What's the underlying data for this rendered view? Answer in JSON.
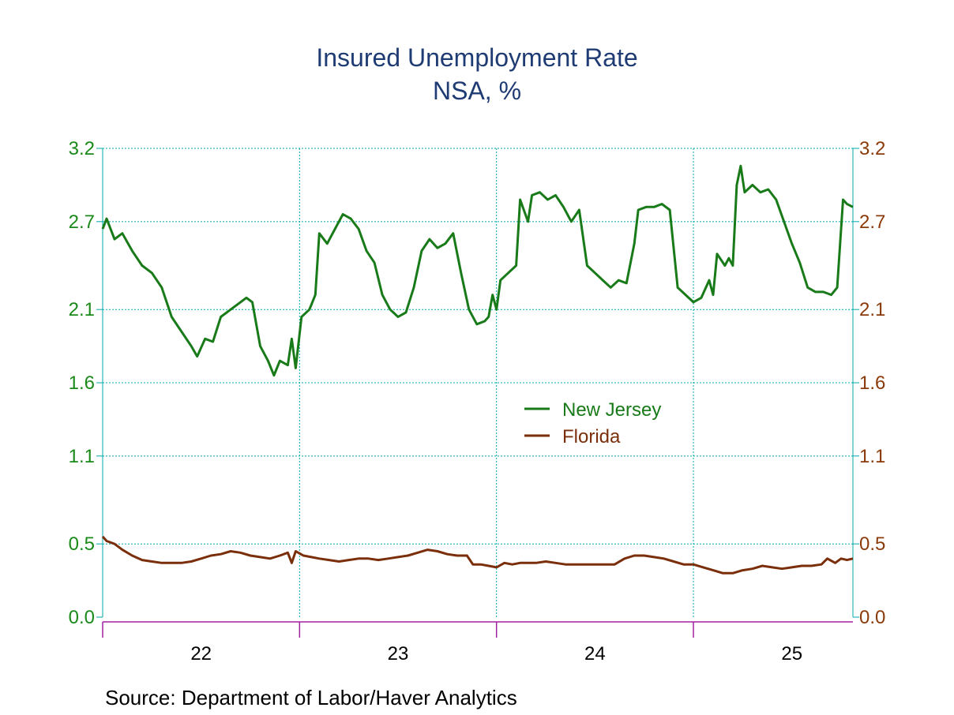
{
  "chart_data": {
    "type": "line",
    "title": "Insured Unemployment Rate",
    "subtitle": "NSA, %",
    "source": "Source:  Department of Labor/Haver Analytics",
    "x_range": [
      2021.5,
      2025.31
    ],
    "ylim": [
      0.0,
      3.2
    ],
    "y_ticks": [
      {
        "value": 0.0,
        "label": "0.0"
      },
      {
        "value": 0.5,
        "label": "0.5"
      },
      {
        "value": 1.1,
        "label": "1.1"
      },
      {
        "value": 1.6,
        "label": "1.6"
      },
      {
        "value": 2.1,
        "label": "2.1"
      },
      {
        "value": 2.7,
        "label": "2.7"
      },
      {
        "value": 3.2,
        "label": "3.2"
      }
    ],
    "x_ticks": [
      {
        "value": 2022,
        "label": "22"
      },
      {
        "value": 2023,
        "label": "23"
      },
      {
        "value": 2024,
        "label": "24"
      },
      {
        "value": 2025,
        "label": "25"
      }
    ],
    "year_boundaries": [
      2022.5,
      2023.5,
      2024.5
    ],
    "grid": true,
    "legend_position": "center-right",
    "colors": {
      "left_axis": "#1a8a1a",
      "right_axis": "#8b3a0a",
      "grid": "#00aaaa",
      "xaxis": "#a020a0",
      "title": "#1f3b73"
    },
    "series": [
      {
        "name": "New Jersey",
        "color": "#187a18",
        "axis": "left",
        "points": [
          [
            2021.5,
            2.65
          ],
          [
            2021.52,
            2.72
          ],
          [
            2021.56,
            2.58
          ],
          [
            2021.6,
            2.62
          ],
          [
            2021.65,
            2.5
          ],
          [
            2021.7,
            2.4
          ],
          [
            2021.75,
            2.35
          ],
          [
            2021.8,
            2.25
          ],
          [
            2021.85,
            2.05
          ],
          [
            2021.9,
            1.95
          ],
          [
            2021.95,
            1.85
          ],
          [
            2021.98,
            1.78
          ],
          [
            2022.02,
            1.9
          ],
          [
            2022.06,
            1.88
          ],
          [
            2022.1,
            2.05
          ],
          [
            2022.15,
            2.1
          ],
          [
            2022.2,
            2.15
          ],
          [
            2022.23,
            2.18
          ],
          [
            2022.26,
            2.15
          ],
          [
            2022.3,
            1.85
          ],
          [
            2022.34,
            1.75
          ],
          [
            2022.37,
            1.65
          ],
          [
            2022.4,
            1.75
          ],
          [
            2022.44,
            1.72
          ],
          [
            2022.46,
            1.9
          ],
          [
            2022.48,
            1.7
          ],
          [
            2022.51,
            2.05
          ],
          [
            2022.55,
            2.1
          ],
          [
            2022.58,
            2.2
          ],
          [
            2022.6,
            2.62
          ],
          [
            2022.64,
            2.55
          ],
          [
            2022.68,
            2.65
          ],
          [
            2022.72,
            2.75
          ],
          [
            2022.76,
            2.72
          ],
          [
            2022.8,
            2.65
          ],
          [
            2022.84,
            2.5
          ],
          [
            2022.88,
            2.42
          ],
          [
            2022.92,
            2.2
          ],
          [
            2022.96,
            2.1
          ],
          [
            2023.0,
            2.05
          ],
          [
            2023.04,
            2.08
          ],
          [
            2023.08,
            2.25
          ],
          [
            2023.12,
            2.5
          ],
          [
            2023.16,
            2.58
          ],
          [
            2023.2,
            2.52
          ],
          [
            2023.24,
            2.55
          ],
          [
            2023.28,
            2.62
          ],
          [
            2023.32,
            2.35
          ],
          [
            2023.36,
            2.1
          ],
          [
            2023.4,
            2.0
          ],
          [
            2023.44,
            2.02
          ],
          [
            2023.46,
            2.05
          ],
          [
            2023.48,
            2.2
          ],
          [
            2023.5,
            2.1
          ],
          [
            2023.52,
            2.3
          ],
          [
            2023.56,
            2.35
          ],
          [
            2023.6,
            2.4
          ],
          [
            2023.62,
            2.85
          ],
          [
            2023.66,
            2.7
          ],
          [
            2023.68,
            2.88
          ],
          [
            2023.72,
            2.9
          ],
          [
            2023.76,
            2.85
          ],
          [
            2023.8,
            2.88
          ],
          [
            2023.84,
            2.8
          ],
          [
            2023.88,
            2.7
          ],
          [
            2023.92,
            2.78
          ],
          [
            2023.96,
            2.4
          ],
          [
            2024.0,
            2.35
          ],
          [
            2024.04,
            2.3
          ],
          [
            2024.08,
            2.25
          ],
          [
            2024.12,
            2.3
          ],
          [
            2024.16,
            2.28
          ],
          [
            2024.2,
            2.55
          ],
          [
            2024.22,
            2.78
          ],
          [
            2024.26,
            2.8
          ],
          [
            2024.3,
            2.8
          ],
          [
            2024.34,
            2.82
          ],
          [
            2024.38,
            2.78
          ],
          [
            2024.42,
            2.25
          ],
          [
            2024.46,
            2.2
          ],
          [
            2024.5,
            2.15
          ],
          [
            2024.54,
            2.18
          ],
          [
            2024.58,
            2.3
          ],
          [
            2024.6,
            2.2
          ],
          [
            2024.62,
            2.48
          ],
          [
            2024.66,
            2.4
          ],
          [
            2024.68,
            2.45
          ],
          [
            2024.7,
            2.4
          ],
          [
            2024.72,
            2.95
          ],
          [
            2024.74,
            3.08
          ],
          [
            2024.76,
            2.9
          ],
          [
            2024.8,
            2.95
          ],
          [
            2024.84,
            2.9
          ],
          [
            2024.88,
            2.92
          ],
          [
            2024.92,
            2.85
          ],
          [
            2024.96,
            2.7
          ],
          [
            2025.0,
            2.55
          ],
          [
            2025.04,
            2.42
          ],
          [
            2025.08,
            2.25
          ],
          [
            2025.12,
            2.22
          ],
          [
            2025.16,
            2.22
          ],
          [
            2025.2,
            2.2
          ],
          [
            2025.23,
            2.25
          ],
          [
            2025.26,
            2.85
          ],
          [
            2025.28,
            2.82
          ],
          [
            2025.31,
            2.8
          ]
        ]
      },
      {
        "name": "Florida",
        "color": "#7a2e0a",
        "axis": "right",
        "points": [
          [
            2021.5,
            0.55
          ],
          [
            2021.52,
            0.52
          ],
          [
            2021.56,
            0.5
          ],
          [
            2021.6,
            0.46
          ],
          [
            2021.65,
            0.42
          ],
          [
            2021.7,
            0.39
          ],
          [
            2021.75,
            0.38
          ],
          [
            2021.8,
            0.37
          ],
          [
            2021.85,
            0.37
          ],
          [
            2021.9,
            0.37
          ],
          [
            2021.95,
            0.38
          ],
          [
            2022.0,
            0.4
          ],
          [
            2022.05,
            0.42
          ],
          [
            2022.1,
            0.43
          ],
          [
            2022.15,
            0.45
          ],
          [
            2022.2,
            0.44
          ],
          [
            2022.25,
            0.42
          ],
          [
            2022.3,
            0.41
          ],
          [
            2022.35,
            0.4
          ],
          [
            2022.4,
            0.42
          ],
          [
            2022.44,
            0.44
          ],
          [
            2022.46,
            0.37
          ],
          [
            2022.48,
            0.45
          ],
          [
            2022.52,
            0.42
          ],
          [
            2022.56,
            0.41
          ],
          [
            2022.6,
            0.4
          ],
          [
            2022.65,
            0.39
          ],
          [
            2022.7,
            0.38
          ],
          [
            2022.75,
            0.39
          ],
          [
            2022.8,
            0.4
          ],
          [
            2022.85,
            0.4
          ],
          [
            2022.9,
            0.39
          ],
          [
            2022.95,
            0.4
          ],
          [
            2023.0,
            0.41
          ],
          [
            2023.05,
            0.42
          ],
          [
            2023.1,
            0.44
          ],
          [
            2023.15,
            0.46
          ],
          [
            2023.2,
            0.45
          ],
          [
            2023.25,
            0.43
          ],
          [
            2023.3,
            0.42
          ],
          [
            2023.35,
            0.42
          ],
          [
            2023.38,
            0.36
          ],
          [
            2023.42,
            0.36
          ],
          [
            2023.46,
            0.35
          ],
          [
            2023.5,
            0.34
          ],
          [
            2023.54,
            0.37
          ],
          [
            2023.58,
            0.36
          ],
          [
            2023.62,
            0.37
          ],
          [
            2023.66,
            0.37
          ],
          [
            2023.7,
            0.37
          ],
          [
            2023.75,
            0.38
          ],
          [
            2023.8,
            0.37
          ],
          [
            2023.85,
            0.36
          ],
          [
            2023.9,
            0.36
          ],
          [
            2023.95,
            0.36
          ],
          [
            2024.0,
            0.36
          ],
          [
            2024.05,
            0.36
          ],
          [
            2024.1,
            0.36
          ],
          [
            2024.15,
            0.4
          ],
          [
            2024.2,
            0.42
          ],
          [
            2024.25,
            0.42
          ],
          [
            2024.3,
            0.41
          ],
          [
            2024.35,
            0.4
          ],
          [
            2024.4,
            0.38
          ],
          [
            2024.45,
            0.36
          ],
          [
            2024.5,
            0.36
          ],
          [
            2024.55,
            0.34
          ],
          [
            2024.6,
            0.32
          ],
          [
            2024.65,
            0.3
          ],
          [
            2024.7,
            0.3
          ],
          [
            2024.75,
            0.32
          ],
          [
            2024.8,
            0.33
          ],
          [
            2024.85,
            0.35
          ],
          [
            2024.9,
            0.34
          ],
          [
            2024.95,
            0.33
          ],
          [
            2025.0,
            0.34
          ],
          [
            2025.05,
            0.35
          ],
          [
            2025.1,
            0.35
          ],
          [
            2025.15,
            0.36
          ],
          [
            2025.18,
            0.4
          ],
          [
            2025.22,
            0.37
          ],
          [
            2025.25,
            0.4
          ],
          [
            2025.28,
            0.39
          ],
          [
            2025.31,
            0.4
          ]
        ]
      }
    ]
  }
}
